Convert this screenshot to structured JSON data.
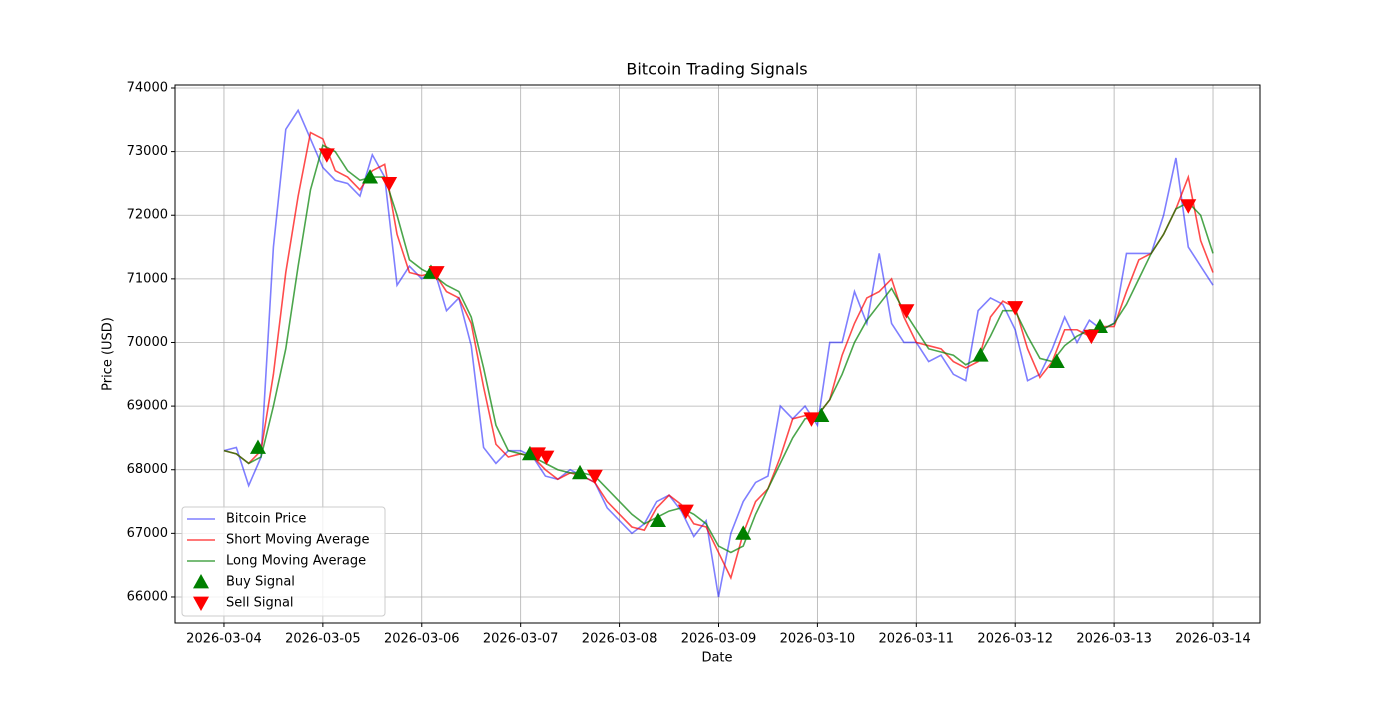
{
  "chart_data": {
    "type": "line",
    "title": "Bitcoin Trading Signals",
    "x_label": "Date",
    "y_label": "Price (USD)",
    "x": [
      0,
      0.125,
      0.25,
      0.375,
      0.5,
      0.625,
      0.75,
      0.875,
      1,
      1.125,
      1.25,
      1.375,
      1.5,
      1.625,
      1.75,
      1.875,
      2,
      2.125,
      2.25,
      2.375,
      2.5,
      2.625,
      2.75,
      2.875,
      3,
      3.125,
      3.25,
      3.375,
      3.5,
      3.625,
      3.75,
      3.875,
      4,
      4.125,
      4.25,
      4.375,
      4.5,
      4.625,
      4.75,
      4.875,
      5,
      5.125,
      5.25,
      5.375,
      5.5,
      5.625,
      5.75,
      5.875,
      6,
      6.125,
      6.25,
      6.375,
      6.5,
      6.625,
      6.75,
      6.875,
      7,
      7.125,
      7.25,
      7.375,
      7.5,
      7.625,
      7.75,
      7.875,
      8,
      8.125,
      8.25,
      8.375,
      8.5,
      8.625,
      8.75,
      8.875,
      9,
      9.125,
      9.25,
      9.375,
      9.5,
      9.625,
      9.75,
      9.875,
      10
    ],
    "xlim": [
      -0.495,
      10.475
    ],
    "xticks": [
      {
        "value": 0,
        "label": "2026-03-04"
      },
      {
        "value": 1,
        "label": "2026-03-05"
      },
      {
        "value": 2,
        "label": "2026-03-06"
      },
      {
        "value": 3,
        "label": "2026-03-07"
      },
      {
        "value": 4,
        "label": "2026-03-08"
      },
      {
        "value": 5,
        "label": "2026-03-09"
      },
      {
        "value": 6,
        "label": "2026-03-10"
      },
      {
        "value": 7,
        "label": "2026-03-11"
      },
      {
        "value": 8,
        "label": "2026-03-12"
      },
      {
        "value": 9,
        "label": "2026-03-13"
      },
      {
        "value": 10,
        "label": "2026-03-14"
      }
    ],
    "ylim": [
      65591,
      74047
    ],
    "yticks": [
      66000,
      67000,
      68000,
      69000,
      70000,
      71000,
      72000,
      73000,
      74000
    ],
    "grid": true,
    "legend": "lower left",
    "series": [
      {
        "name": "Bitcoin Price",
        "color": "#0000ff",
        "opacity": 0.5,
        "values": [
          68300,
          68350,
          67750,
          68200,
          71500,
          73350,
          73650,
          73200,
          72750,
          72550,
          72500,
          72300,
          72950,
          72600,
          70900,
          71200,
          71000,
          71150,
          70500,
          70700,
          69950,
          68350,
          68100,
          68300,
          68300,
          68200,
          67900,
          67850,
          68000,
          67900,
          67800,
          67400,
          67200,
          67000,
          67150,
          67500,
          67600,
          67350,
          66950,
          67200,
          66000,
          67000,
          67500,
          67800,
          67900,
          69000,
          68800,
          69000,
          68700,
          70000,
          70000,
          70800,
          70300,
          71400,
          70300,
          70000,
          70000,
          69700,
          69800,
          69500,
          69400,
          70500,
          70700,
          70600,
          70200,
          69400,
          69500,
          69900,
          70400,
          70000,
          70350,
          70200,
          70300,
          71400,
          71400,
          71400,
          72000,
          72900,
          71500,
          71200,
          70900
        ]
      },
      {
        "name": "Short Moving Average",
        "color": "#ff0000",
        "opacity": 0.7,
        "values": [
          68300,
          68250,
          68100,
          68300,
          69500,
          71100,
          72300,
          73300,
          73200,
          72700,
          72600,
          72400,
          72700,
          72800,
          71700,
          71100,
          71050,
          71100,
          70800,
          70700,
          70300,
          69300,
          68400,
          68200,
          68250,
          68200,
          68000,
          67850,
          67950,
          67900,
          67800,
          67500,
          67300,
          67100,
          67050,
          67400,
          67600,
          67450,
          67150,
          67100,
          66700,
          66300,
          67000,
          67500,
          67700,
          68200,
          68800,
          68850,
          68850,
          69100,
          69800,
          70300,
          70700,
          70800,
          71000,
          70400,
          70000,
          69950,
          69900,
          69700,
          69600,
          69700,
          70400,
          70650,
          70550,
          69900,
          69450,
          69700,
          70200,
          70200,
          70100,
          70250,
          70250,
          70800,
          71300,
          71400,
          71700,
          72100,
          72600,
          71600,
          71100
        ]
      },
      {
        "name": "Long Moving Average",
        "color": "#008000",
        "opacity": 0.7,
        "values": [
          68300,
          68250,
          68100,
          68200,
          69000,
          69900,
          71200,
          72400,
          73100,
          73000,
          72700,
          72550,
          72600,
          72600,
          72000,
          71300,
          71150,
          71050,
          70900,
          70800,
          70400,
          69600,
          68700,
          68300,
          68250,
          68200,
          68100,
          68000,
          67950,
          67950,
          67900,
          67700,
          67500,
          67300,
          67150,
          67250,
          67350,
          67400,
          67300,
          67150,
          66800,
          66700,
          66800,
          67300,
          67700,
          68100,
          68500,
          68800,
          68850,
          69100,
          69500,
          70000,
          70350,
          70600,
          70850,
          70500,
          70200,
          69900,
          69850,
          69800,
          69650,
          69750,
          70100,
          70500,
          70500,
          70100,
          69750,
          69700,
          69950,
          70100,
          70200,
          70200,
          70300,
          70600,
          71000,
          71400,
          71700,
          72100,
          72200,
          72000,
          71400
        ]
      },
      {
        "name": "Buy Signal",
        "color": "#008000",
        "marker": "triangle-up",
        "x": [
          0.344,
          1.477,
          2.093,
          3.094,
          3.6,
          4.388,
          5.25,
          6.04,
          7.65,
          8.42,
          8.857
        ],
        "values": [
          68350,
          72600,
          71100,
          68250,
          67950,
          67200,
          67000,
          68850,
          69800,
          69700,
          70250
        ]
      },
      {
        "name": "Sell Signal",
        "color": "#ff0000",
        "marker": "triangle-down",
        "x": [
          1.04,
          1.67,
          2.15,
          3.175,
          3.26,
          3.75,
          4.67,
          5.94,
          6.9,
          8.0,
          8.77,
          9.75
        ],
        "values": [
          72950,
          72500,
          71100,
          68250,
          68200,
          67900,
          67350,
          68800,
          70500,
          70550,
          70100,
          72150
        ]
      }
    ]
  }
}
